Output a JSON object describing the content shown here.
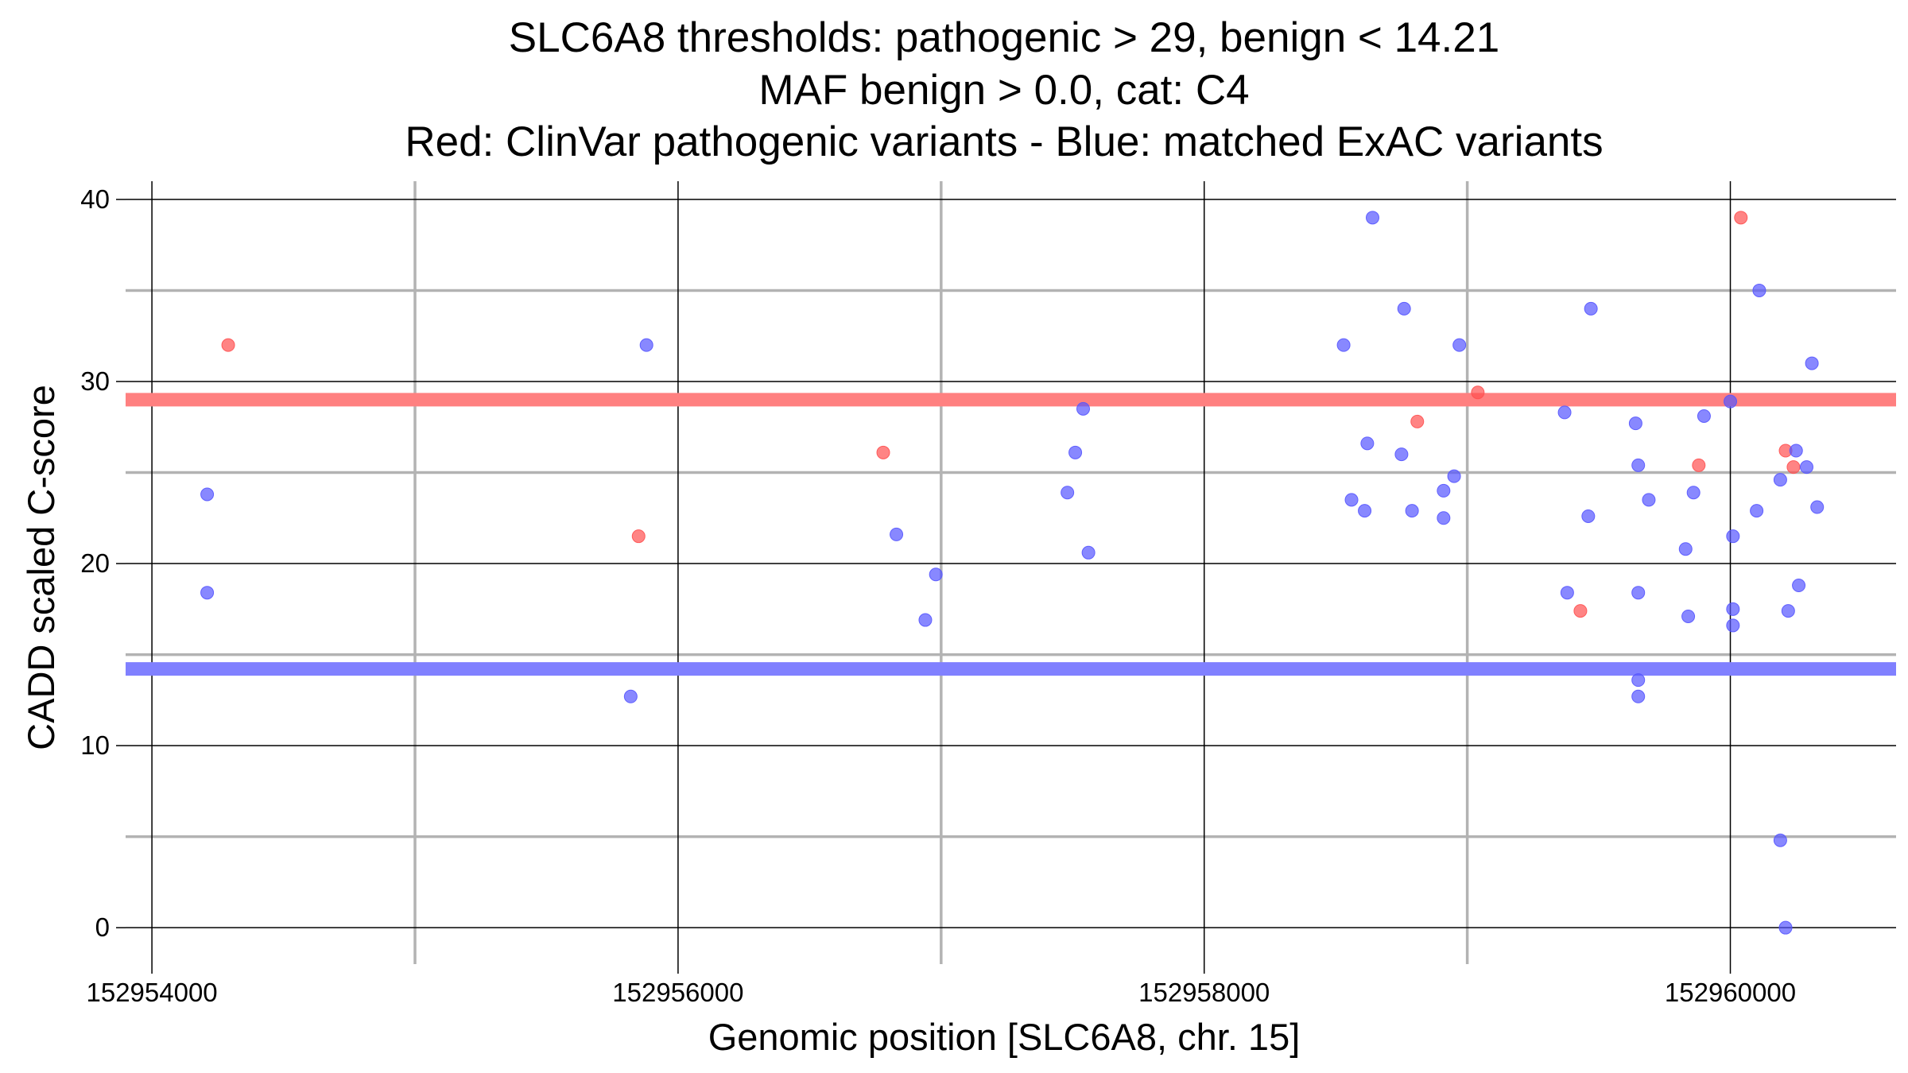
{
  "chart_data": {
    "type": "scatter",
    "title": [
      "SLC6A8 thresholds: pathogenic > 29, benign < 14.21",
      "MAF benign > 0.0, cat: C4",
      "Red: ClinVar pathogenic variants - Blue: matched ExAC variants"
    ],
    "xlabel": "Genomic position [SLC6A8, chr. 15]",
    "ylabel": "CADD scaled C-score",
    "xlim": [
      152953900,
      152960630
    ],
    "ylim": [
      -2,
      41
    ],
    "x_ticks": [
      152954000,
      152956000,
      152958000,
      152960000
    ],
    "x_tick_labels": [
      "152954000",
      "152956000",
      "152958000",
      "152960000"
    ],
    "x_minor_gridlines": [
      152955000,
      152957000,
      152959000
    ],
    "y_ticks": [
      0,
      10,
      20,
      30,
      40
    ],
    "y_tick_labels": [
      "0",
      "10",
      "20",
      "30",
      "40"
    ],
    "y_minor_gridlines": [
      5,
      15,
      25,
      35
    ],
    "thresholds": [
      {
        "name": "pathogenic",
        "value": 29,
        "color": "#ff8080"
      },
      {
        "name": "benign",
        "value": 14.21,
        "color": "#8080ff"
      }
    ],
    "series": [
      {
        "name": "ClinVar pathogenic variants",
        "color": "#ff5050",
        "points": [
          [
            152954290,
            32
          ],
          [
            152955850,
            21.5
          ],
          [
            152956780,
            26.1
          ],
          [
            152958810,
            27.8
          ],
          [
            152959040,
            29.4
          ],
          [
            152959430,
            17.4
          ],
          [
            152959880,
            25.4
          ],
          [
            152960040,
            39
          ],
          [
            152960210,
            26.2
          ],
          [
            152960240,
            25.3
          ]
        ]
      },
      {
        "name": "matched ExAC variants",
        "color": "#5555ff",
        "points": [
          [
            152954210,
            23.8
          ],
          [
            152954210,
            18.4
          ],
          [
            152955820,
            12.7
          ],
          [
            152955880,
            32
          ],
          [
            152956830,
            21.6
          ],
          [
            152956940,
            16.9
          ],
          [
            152956980,
            19.4
          ],
          [
            152957480,
            23.9
          ],
          [
            152957510,
            26.1
          ],
          [
            152957540,
            28.5
          ],
          [
            152957560,
            20.6
          ],
          [
            152958530,
            32
          ],
          [
            152958560,
            23.5
          ],
          [
            152958610,
            22.9
          ],
          [
            152958620,
            26.6
          ],
          [
            152958640,
            39
          ],
          [
            152958750,
            26
          ],
          [
            152958760,
            34
          ],
          [
            152958790,
            22.9
          ],
          [
            152958910,
            22.5
          ],
          [
            152958910,
            24
          ],
          [
            152958950,
            24.8
          ],
          [
            152958970,
            32
          ],
          [
            152959370,
            28.3
          ],
          [
            152959380,
            18.4
          ],
          [
            152959460,
            22.6
          ],
          [
            152959470,
            34
          ],
          [
            152959640,
            27.7
          ],
          [
            152959650,
            25.4
          ],
          [
            152959650,
            18.4
          ],
          [
            152959650,
            13.6
          ],
          [
            152959650,
            12.7
          ],
          [
            152959690,
            23.5
          ],
          [
            152959830,
            20.8
          ],
          [
            152959840,
            17.1
          ],
          [
            152959860,
            23.9
          ],
          [
            152959900,
            28.1
          ],
          [
            152960000,
            28.9
          ],
          [
            152960010,
            21.5
          ],
          [
            152960010,
            17.5
          ],
          [
            152960010,
            16.6
          ],
          [
            152960100,
            22.9
          ],
          [
            152960110,
            35
          ],
          [
            152960190,
            24.6
          ],
          [
            152960190,
            4.8
          ],
          [
            152960210,
            0
          ],
          [
            152960220,
            17.4
          ],
          [
            152960250,
            26.2
          ],
          [
            152960260,
            18.8
          ],
          [
            152960290,
            25.3
          ],
          [
            152960310,
            31
          ],
          [
            152960330,
            23.1
          ]
        ]
      }
    ]
  }
}
